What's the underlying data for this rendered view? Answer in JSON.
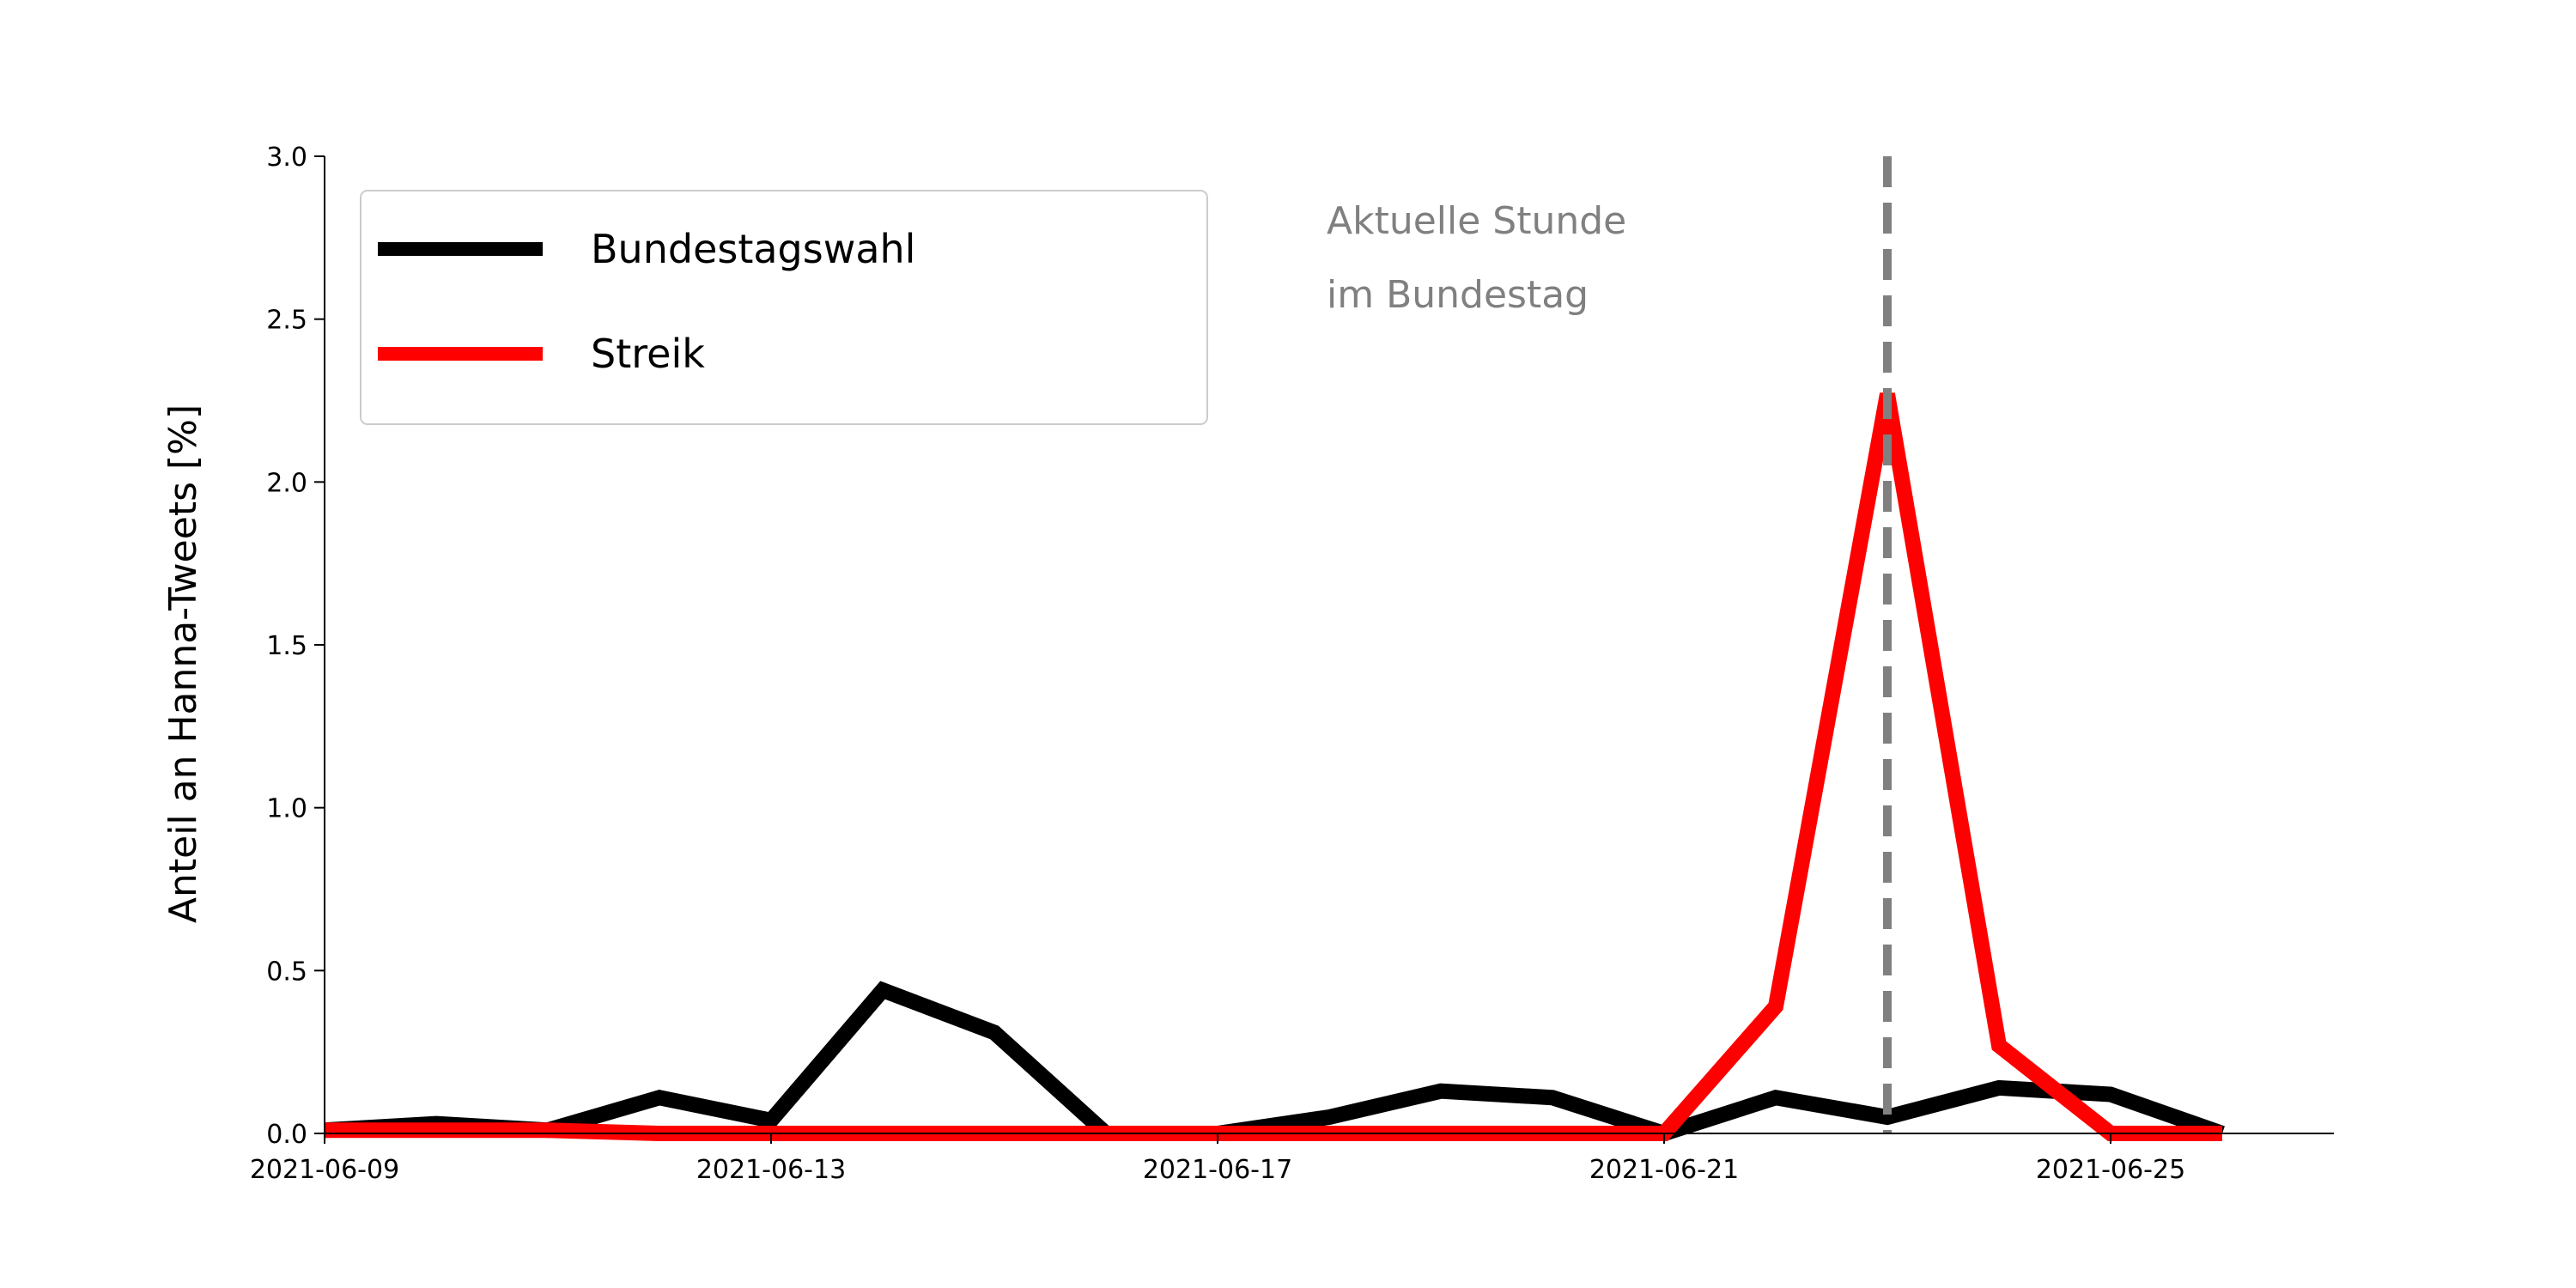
{
  "chart_data": {
    "type": "line",
    "title": "",
    "xlabel": "",
    "ylabel": "Anteil an Hanna-Tweets [%]",
    "ylim": [
      0,
      3.0
    ],
    "xlim": [
      "2021-06-09",
      "2021-06-27"
    ],
    "grid": false,
    "legend_position": "top-left",
    "x": [
      "2021-06-09",
      "2021-06-10",
      "2021-06-11",
      "2021-06-12",
      "2021-06-13",
      "2021-06-14",
      "2021-06-15",
      "2021-06-16",
      "2021-06-17",
      "2021-06-18",
      "2021-06-19",
      "2021-06-20",
      "2021-06-21",
      "2021-06-22",
      "2021-06-23",
      "2021-06-24",
      "2021-06-25",
      "2021-06-26"
    ],
    "x_ticks": [
      "2021-06-09",
      "2021-06-13",
      "2021-06-17",
      "2021-06-21",
      "2021-06-25"
    ],
    "y_ticks": [
      "0.0",
      "0.5",
      "1.0",
      "1.5",
      "2.0",
      "2.5",
      "3.0"
    ],
    "series": [
      {
        "name": "Bundestagswahl",
        "color": "#000000",
        "values": [
          0.01,
          0.03,
          0.01,
          0.11,
          0.04,
          0.44,
          0.31,
          0.0,
          0.0,
          0.05,
          0.13,
          0.11,
          0.0,
          0.11,
          0.05,
          0.14,
          0.12,
          0.0
        ]
      },
      {
        "name": "Streik",
        "color": "#ff0000",
        "values": [
          0.01,
          0.01,
          0.01,
          0.0,
          0.0,
          0.0,
          0.0,
          0.0,
          0.0,
          0.0,
          0.0,
          0.0,
          0.0,
          0.39,
          2.27,
          0.27,
          0.0,
          0.0
        ]
      }
    ],
    "annotation": {
      "x": "2021-06-23",
      "color": "#808080",
      "lines": [
        "Aktuelle Stunde",
        "im Bundestag"
      ]
    }
  }
}
